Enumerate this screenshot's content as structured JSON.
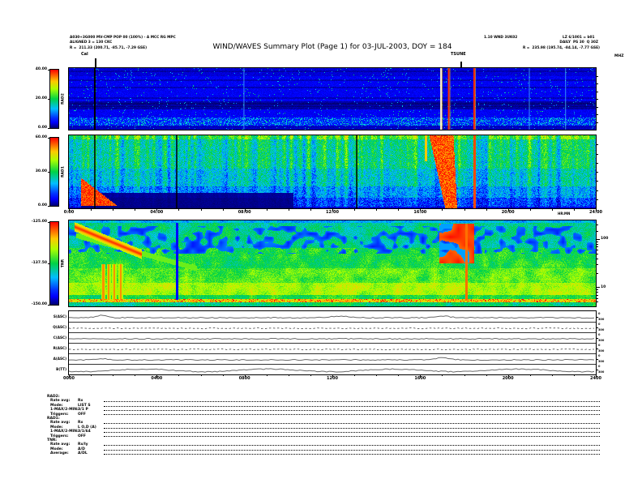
{
  "title": "WIND/WAVES Summary Plot (Page 1) for 03-JUL-2003, DOY = 184",
  "header": {
    "left_lines": [
      "A030+3G000 MV-CMP POP 00 (100%) - A MCC RG MPC",
      "ALIGNED 3 = 130 CKC",
      "R =  211.33 (200.71, -85.71, -7.29 GSE)"
    ],
    "right_line1a": "1.10 WND 3UK02",
    "right_line1b": "LZ 6/1001 = b01",
    "right_line2": "DAILY  PS 30  Q 30Z",
    "right_line3": "R =  235.98 (195.74, -84.14, -7.77 GSE)"
  },
  "annotations": {
    "cal": "Cal",
    "event": "TSUNE"
  },
  "axes": {
    "right_unit": "MHZ",
    "time_labels": [
      "0:00",
      "04:00",
      "08:00",
      "12:00",
      "16:00",
      "20:00",
      "24:00"
    ],
    "time_unit": "HR:MN",
    "bottom_labels": [
      "0000",
      "0400",
      "0800",
      "1200",
      "1600",
      "2000",
      "2400"
    ]
  },
  "chart_data": [
    {
      "type": "heatmap",
      "name": "RAD2",
      "ylabel": "RAD2",
      "value_unit": "dB",
      "colorbar_ticks": [
        "40.00",
        "20.00",
        "0.00"
      ],
      "freq_axis_unit": "MHZ",
      "x_range_hours": [
        0,
        24
      ],
      "features": {
        "base": "dark blue background, horizontal band structure, cyan speckle near bottom, black band near 60% depth",
        "black_vertical_lines_hours": [
          1.18
        ],
        "bright_vertical_lines_hours": [
          16.95,
          17.3,
          18.46
        ],
        "faint_vertical_lines_hours": [
          7.95,
          20.95,
          22.6
        ],
        "dark_horizontal_band_fraction": [
          0.55,
          0.66
        ]
      }
    },
    {
      "type": "heatmap",
      "name": "RAD1",
      "ylabel": "RAD1",
      "value_unit": "dB",
      "colorbar_ticks": [
        "60.00",
        "30.00",
        "0.00"
      ],
      "x_range_hours": [
        0,
        24
      ],
      "features": {
        "base": "dense green-yellow vertical striations over full day",
        "black_vertical_lines_hours": [
          1.18,
          4.91,
          13.11
        ],
        "red_wedge_hours": [
          0.55,
          2.2
        ],
        "major_burst_hours": [
          16.7,
          17.9
        ],
        "red_vertical_line_hour": 18.46,
        "dark_bottom_band_hours": [
          0.55,
          10.2
        ]
      }
    },
    {
      "type": "heatmap",
      "name": "TNR",
      "ylabel": "TNR",
      "value_unit": "dB",
      "colorbar_ticks": [
        "-125.00",
        "-137.50",
        "-150.00"
      ],
      "right_tick_labels": [
        "100",
        "10"
      ],
      "x_range_hours": [
        0,
        24
      ],
      "features": {
        "base": "green-cyan background, yellow band at low frequency, dark-blue mottled band at high frequency, bright speckled line near bottom",
        "diagonal_streak_hours": [
          0.25,
          3.3
        ],
        "secondary_arc_hours": [
          0.3,
          5.8
        ],
        "red_blob_hours": [
          16.85,
          18.45
        ],
        "red_vertical_spike_hour": 18.08,
        "blue_vertical_line_hour": 4.91,
        "bottom_spike_hours": [
          1.55,
          1.8,
          2.05,
          2.35
        ],
        "bright_bottom_line_fraction": 0.93
      }
    },
    {
      "type": "line",
      "name": "housekeeping",
      "rows": [
        {
          "label": "S(ASC)",
          "style": "solid"
        },
        {
          "label": "Q(ASC)",
          "style": "dashed"
        },
        {
          "label": "C(ASC)",
          "style": "solid"
        },
        {
          "label": "R(ASC)",
          "style": "dashed"
        },
        {
          "label": "A(ASC)",
          "style": "solid"
        },
        {
          "label": "B(TT)",
          "style": "solid"
        }
      ],
      "right_label_top": "0",
      "right_label_bottom": "300"
    }
  ],
  "status_block": {
    "rows": [
      {
        "label": "RAD2:",
        "value": "",
        "header": true
      },
      {
        "label": "Rate avg:",
        "value": "Rx"
      },
      {
        "label": "Mode:",
        "value": "LIST S"
      },
      {
        "label": "1-MAX/2-MIN:",
        "value": "3/1 P"
      },
      {
        "label": "Triggers:",
        "value": "OFF"
      },
      {
        "label": "RAD1:",
        "value": "",
        "header": true
      },
      {
        "label": "Rate avg:",
        "value": "Rx"
      },
      {
        "label": "Mode:",
        "value": "L O,D (A)"
      },
      {
        "label": "1-MAX/2-MIN:",
        "value": "3/1/64"
      },
      {
        "label": "Triggers:",
        "value": "OFF"
      },
      {
        "label": "TNR:",
        "value": "",
        "header": true
      },
      {
        "label": "Rate avg:",
        "value": "Rx/Iy"
      },
      {
        "label": "Mode:",
        "value": "A/D"
      },
      {
        "label": "Average:",
        "value": "A/DL"
      }
    ]
  },
  "colors": {
    "background": "#ffffff",
    "frame": "#000000",
    "colormap": [
      "#00006e",
      "#0000ff",
      "#00beff",
      "#00d246",
      "#aaff00",
      "#ffc800",
      "#ff5a00",
      "#ff0000"
    ]
  }
}
